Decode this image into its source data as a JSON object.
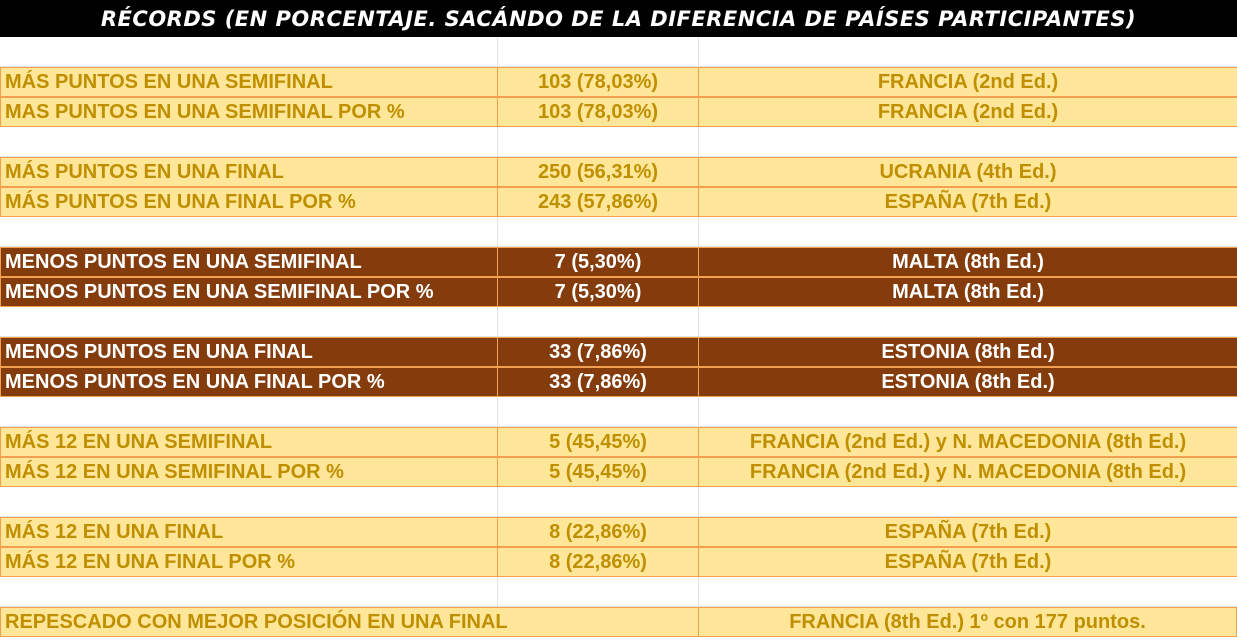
{
  "header": {
    "title": "Récords (en porcentaje. Sacándo de la diferencia de países participantes)"
  },
  "table": {
    "groups": [
      {
        "style": "light",
        "rows": [
          [
            "MÁS PUNTOS EN UNA SEMIFINAL",
            "103 (78,03%)",
            "FRANCIA (2nd Ed.)"
          ],
          [
            "MAS PUNTOS EN UNA SEMIFINAL POR %",
            "103 (78,03%)",
            "FRANCIA (2nd Ed.)"
          ]
        ]
      },
      {
        "style": "light",
        "rows": [
          [
            "MÁS PUNTOS EN UNA FINAL",
            "250 (56,31%)",
            "UCRANIA (4th Ed.)"
          ],
          [
            "MÁS PUNTOS EN UNA FINAL POR %",
            "243 (57,86%)",
            "ESPAÑA (7th Ed.)"
          ]
        ]
      },
      {
        "style": "dark",
        "rows": [
          [
            "MENOS PUNTOS EN UNA SEMIFINAL",
            "7 (5,30%)",
            "MALTA (8th Ed.)"
          ],
          [
            "MENOS PUNTOS EN UNA SEMIFINAL POR %",
            "7 (5,30%)",
            "MALTA (8th Ed.)"
          ]
        ]
      },
      {
        "style": "dark",
        "rows": [
          [
            "MENOS PUNTOS EN UNA FINAL",
            "33 (7,86%)",
            "ESTONIA (8th Ed.)"
          ],
          [
            "MENOS PUNTOS EN UNA FINAL POR %",
            "33 (7,86%)",
            "ESTONIA (8th Ed.)"
          ]
        ]
      },
      {
        "style": "light",
        "rows": [
          [
            "MÁS 12 EN UNA SEMIFINAL",
            "5 (45,45%)",
            "FRANCIA (2nd Ed.) y N. MACEDONIA (8th Ed.)"
          ],
          [
            "MÁS 12 EN UNA SEMIFINAL POR %",
            "5 (45,45%)",
            "FRANCIA (2nd Ed.) y N. MACEDONIA (8th Ed.)"
          ]
        ]
      },
      {
        "style": "light",
        "rows": [
          [
            "MÁS 12 EN UNA FINAL",
            "8 (22,86%)",
            "ESPAÑA (7th Ed.)"
          ],
          [
            "MÁS 12 EN UNA FINAL POR %",
            "8 (22,86%)",
            "ESPAÑA (7th Ed.)"
          ]
        ]
      },
      {
        "style": "light",
        "rows": [
          [
            "REPESCADO CON MEJOR POSICIÓN EN UNA FINAL",
            "FRANCIA (8th Ed.) 1º con 177 puntos."
          ]
        ]
      }
    ]
  }
}
